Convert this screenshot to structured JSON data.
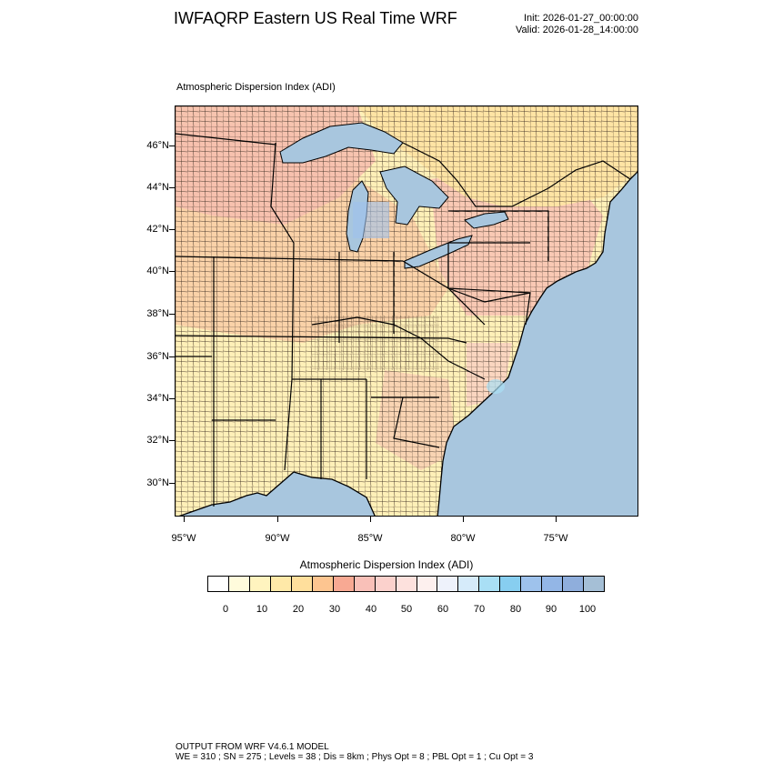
{
  "title": "IWFAQRP Eastern US Real Time WRF",
  "run": {
    "init": "Init: 2026-01-27_00:00:00",
    "valid": "Valid: 2026-01-28_14:00:00"
  },
  "field_title": "Atmospheric Dispersion Index   (ADI)",
  "lat_labels": [
    "46°N",
    "44°N",
    "42°N",
    "40°N",
    "38°N",
    "36°N",
    "34°N",
    "32°N",
    "30°N"
  ],
  "lon_labels": [
    "95°W",
    "90°W",
    "85°W",
    "80°W",
    "75°W"
  ],
  "colorbar": {
    "title": "Atmospheric Dispersion Index  (ADI)",
    "labels": [
      "0",
      "10",
      "20",
      "30",
      "40",
      "50",
      "60",
      "70",
      "80",
      "90",
      "100"
    ],
    "colors": [
      "#ffffff",
      "#fffbdc",
      "#fff4bf",
      "#ffe9a8",
      "#ffdf9c",
      "#fdc590",
      "#f8a993",
      "#f9c0b8",
      "#fbd1cc",
      "#fde1dd",
      "#fdf0ee",
      "#eef2fb",
      "#d6ebfa",
      "#a9dff5",
      "#87cef0",
      "#9ec2ec",
      "#93b6e6",
      "#8faedc",
      "#a5bfd6"
    ]
  },
  "colors": {
    "ocean": "#a8c6de",
    "lake": "#a8c6de",
    "canada_land": "#ffe4a4",
    "south_land": "#fff0b8",
    "midwest_land": "#f9cda4",
    "northeast_land": "#f8c4b4",
    "boundary": "#000000",
    "county": "#3a2a20"
  },
  "footer": {
    "line1": "OUTPUT FROM WRF V4.6.1 MODEL",
    "line2": "WE = 310 ; SN = 275 ; Levels = 38 ; Dis = 8km ; Phys Opt = 8 ; PBL Opt = 1 ; Cu Opt = 3"
  }
}
